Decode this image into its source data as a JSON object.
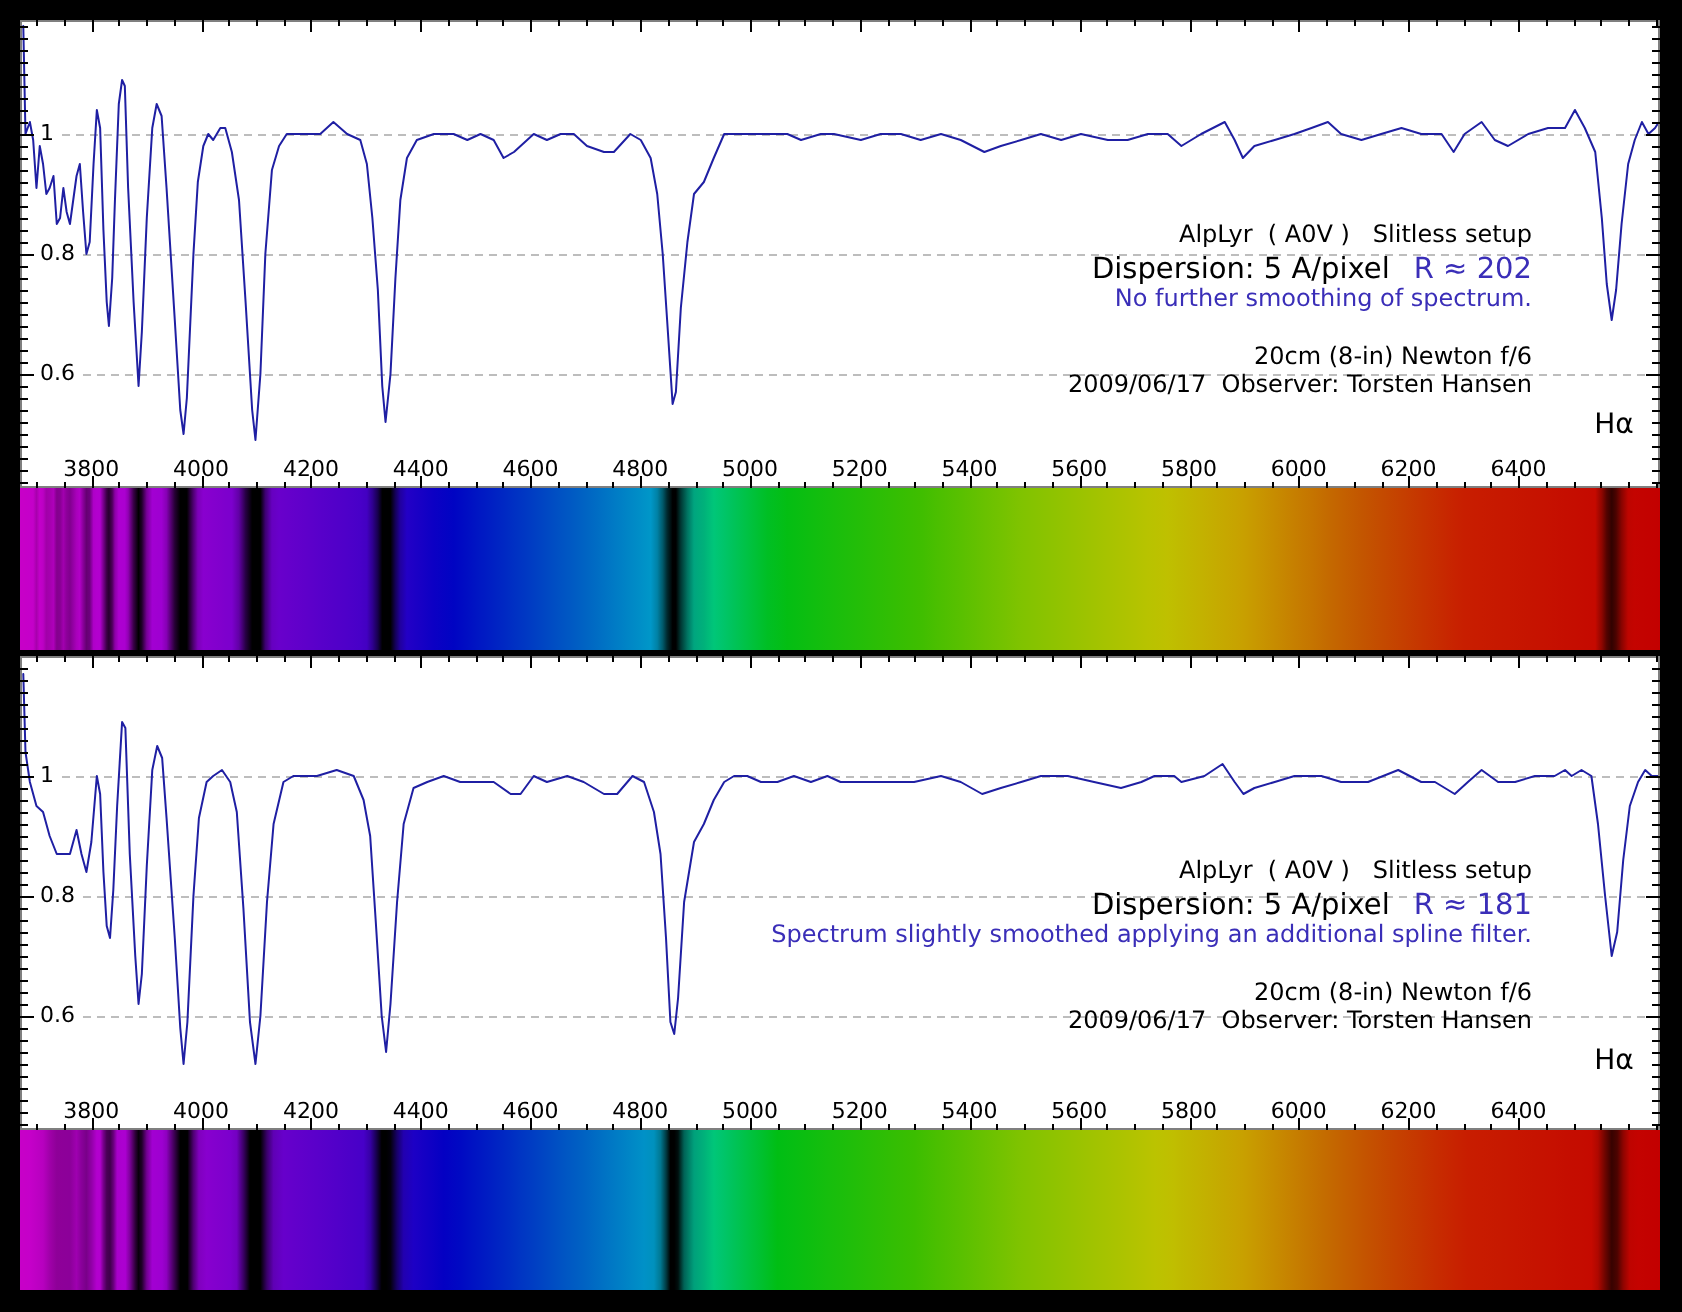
{
  "chart_data": [
    {
      "type": "line",
      "x": [
        3676,
        3680,
        3688,
        3694,
        3700,
        3706,
        3712,
        3718,
        3724,
        3731,
        3737,
        3743,
        3749,
        3755,
        3761,
        3767,
        3773,
        3779,
        3785,
        3791,
        3797,
        3804,
        3810,
        3816,
        3822,
        3828,
        3832,
        3838,
        3843,
        3850,
        3856,
        3861,
        3867,
        3877,
        3886,
        3892,
        3901,
        3911,
        3919,
        3928,
        3937,
        3952,
        3962,
        3968,
        3974,
        3986,
        3994,
        4004,
        4013,
        4022,
        4035,
        4044,
        4056,
        4069,
        4081,
        4093,
        4099,
        4108,
        4117,
        4129,
        4142,
        4156,
        4193,
        4217,
        4241,
        4266,
        4290,
        4302,
        4312,
        4322,
        4330,
        4336,
        4345,
        4354,
        4363,
        4375,
        4393,
        4424,
        4460,
        4485,
        4509,
        4533,
        4551,
        4570,
        4594,
        4606,
        4630,
        4655,
        4679,
        4703,
        4734,
        4752,
        4782,
        4801,
        4819,
        4831,
        4841,
        4849,
        4859,
        4865,
        4874,
        4886,
        4898,
        4916,
        4934,
        4953,
        4971,
        4995,
        5032,
        5068,
        5093,
        5129,
        5153,
        5202,
        5238,
        5275,
        5311,
        5348,
        5384,
        5427,
        5457,
        5494,
        5530,
        5567,
        5603,
        5652,
        5688,
        5725,
        5761,
        5786,
        5822,
        5865,
        5883,
        5898,
        5919,
        5956,
        5992,
        6023,
        6053,
        6077,
        6114,
        6150,
        6187,
        6223,
        6260,
        6282,
        6302,
        6333,
        6357,
        6381,
        6418,
        6454,
        6485,
        6503,
        6521,
        6540,
        6552,
        6561,
        6570,
        6578,
        6588,
        6600,
        6612,
        6625,
        6637,
        6649,
        6656
      ],
      "values": [
        1.18,
        1.0,
        1.02,
        0.99,
        0.91,
        0.98,
        0.95,
        0.9,
        0.91,
        0.93,
        0.85,
        0.86,
        0.91,
        0.87,
        0.85,
        0.89,
        0.93,
        0.95,
        0.87,
        0.8,
        0.82,
        0.95,
        1.04,
        1.01,
        0.84,
        0.72,
        0.68,
        0.76,
        0.89,
        1.05,
        1.09,
        1.08,
        0.91,
        0.72,
        0.58,
        0.67,
        0.86,
        1.01,
        1.05,
        1.03,
        0.91,
        0.69,
        0.54,
        0.5,
        0.56,
        0.8,
        0.92,
        0.98,
        1.0,
        0.99,
        1.01,
        1.01,
        0.97,
        0.89,
        0.72,
        0.54,
        0.49,
        0.6,
        0.8,
        0.94,
        0.98,
        1.0,
        1.0,
        1.0,
        1.02,
        1.0,
        0.99,
        0.95,
        0.86,
        0.74,
        0.58,
        0.52,
        0.6,
        0.76,
        0.89,
        0.96,
        0.99,
        1.0,
        1.0,
        0.99,
        1.0,
        0.99,
        0.96,
        0.97,
        0.99,
        1.0,
        0.99,
        1.0,
        1.0,
        0.98,
        0.97,
        0.97,
        1.0,
        0.99,
        0.96,
        0.9,
        0.8,
        0.69,
        0.55,
        0.57,
        0.71,
        0.82,
        0.9,
        0.92,
        0.96,
        1.0,
        1.0,
        1.0,
        1.0,
        1.0,
        0.99,
        1.0,
        1.0,
        0.99,
        1.0,
        1.0,
        0.99,
        1.0,
        0.99,
        0.97,
        0.98,
        0.99,
        1.0,
        0.99,
        1.0,
        0.99,
        0.99,
        1.0,
        1.0,
        0.98,
        1.0,
        1.02,
        0.99,
        0.96,
        0.98,
        0.99,
        1.0,
        1.01,
        1.02,
        1.0,
        0.99,
        1.0,
        1.01,
        1.0,
        1.0,
        0.97,
        1.0,
        1.02,
        0.99,
        0.98,
        1.0,
        1.01,
        1.01,
        1.04,
        1.01,
        0.97,
        0.86,
        0.75,
        0.69,
        0.74,
        0.85,
        0.95,
        0.99,
        1.02,
        1.0,
        1.01,
        1.02
      ],
      "color": "#1f1fa3",
      "line_style": "solid",
      "marker": "none",
      "xlim": [
        3670,
        6658
      ],
      "ylim": [
        0.41,
        1.19
      ],
      "xticks": [
        {
          "value": 3700,
          "label": null
        },
        {
          "value": 3750,
          "label": null
        },
        3800,
        {
          "value": 3850,
          "label": null
        },
        {
          "value": 3900,
          "label": null
        },
        {
          "value": 3950,
          "label": null
        },
        4000,
        {
          "value": 4050,
          "label": null
        },
        {
          "value": 4100,
          "label": null
        },
        {
          "value": 4150,
          "label": null
        },
        4200,
        {
          "value": 4250,
          "label": null
        },
        {
          "value": 4300,
          "label": null
        },
        {
          "value": 4350,
          "label": null
        },
        4400,
        {
          "value": 4450,
          "label": null
        },
        {
          "value": 4500,
          "label": null
        },
        {
          "value": 4550,
          "label": null
        },
        4600,
        {
          "value": 4650,
          "label": null
        },
        {
          "value": 4700,
          "label": null
        },
        {
          "value": 4750,
          "label": null
        },
        4800,
        {
          "value": 4850,
          "label": null
        },
        {
          "value": 4900,
          "label": null
        },
        {
          "value": 4950,
          "label": null
        },
        5000,
        {
          "value": 5050,
          "label": null
        },
        {
          "value": 5100,
          "label": null
        },
        {
          "value": 5150,
          "label": null
        },
        5200,
        {
          "value": 5250,
          "label": null
        },
        {
          "value": 5300,
          "label": null
        },
        {
          "value": 5350,
          "label": null
        },
        5400,
        {
          "value": 5450,
          "label": null
        },
        {
          "value": 5500,
          "label": null
        },
        {
          "value": 5550,
          "label": null
        },
        5600,
        {
          "value": 5650,
          "label": null
        },
        {
          "value": 5700,
          "label": null
        },
        {
          "value": 5750,
          "label": null
        },
        5800,
        {
          "value": 5850,
          "label": null
        },
        {
          "value": 5900,
          "label": null
        },
        {
          "value": 5950,
          "label": null
        },
        6000,
        {
          "value": 6050,
          "label": null
        },
        {
          "value": 6100,
          "label": null
        },
        {
          "value": 6150,
          "label": null
        },
        6200,
        {
          "value": 6250,
          "label": null
        },
        {
          "value": 6300,
          "label": null
        },
        {
          "value": 6350,
          "label": null
        },
        6400,
        {
          "value": 6450,
          "label": null
        },
        {
          "value": 6500,
          "label": null
        },
        {
          "value": 6550,
          "label": null
        },
        {
          "value": 6600,
          "label": null
        },
        {
          "value": 6650,
          "label": null
        }
      ],
      "yticks": [
        {
          "value": 0.42,
          "label": null
        },
        {
          "value": 0.44,
          "label": null
        },
        {
          "value": 0.46,
          "label": null
        },
        {
          "value": 0.48,
          "label": null
        },
        {
          "value": 0.5,
          "label": null
        },
        {
          "value": 0.52,
          "label": null
        },
        {
          "value": 0.54,
          "label": null
        },
        {
          "value": 0.56,
          "label": null
        },
        {
          "value": 0.58,
          "label": null
        },
        0.6,
        {
          "value": 0.62,
          "label": null
        },
        {
          "value": 0.64,
          "label": null
        },
        {
          "value": 0.66,
          "label": null
        },
        {
          "value": 0.68,
          "label": null
        },
        {
          "value": 0.7,
          "label": null
        },
        {
          "value": 0.72,
          "label": null
        },
        {
          "value": 0.74,
          "label": null
        },
        {
          "value": 0.76,
          "label": null
        },
        {
          "value": 0.78,
          "label": null
        },
        0.8,
        {
          "value": 0.82,
          "label": null
        },
        {
          "value": 0.84,
          "label": null
        },
        {
          "value": 0.86,
          "label": null
        },
        {
          "value": 0.88,
          "label": null
        },
        {
          "value": 0.9,
          "label": null
        },
        {
          "value": 0.92,
          "label": null
        },
        {
          "value": 0.94,
          "label": null
        },
        {
          "value": 0.96,
          "label": null
        },
        {
          "value": 0.98,
          "label": null
        },
        1,
        {
          "value": 1.02,
          "label": null
        },
        {
          "value": 1.04,
          "label": null
        },
        {
          "value": 1.06,
          "label": null
        },
        {
          "value": 1.08,
          "label": null
        },
        {
          "value": 1.1,
          "label": null
        },
        {
          "value": 1.12,
          "label": null
        },
        {
          "value": 1.14,
          "label": null
        },
        {
          "value": 1.16,
          "label": null
        },
        {
          "value": 1.18,
          "label": null
        }
      ],
      "grid": "y",
      "annotations": [
        "AlpLyr  ( A0V )   Slitless setup",
        "Dispersion: 5 A/pixel",
        "R ≈ 202",
        "No further smoothing of spectrum.",
        "20cm (8-in) Newton f/6",
        "2009/06/17  Observer: Torsten Hansen",
        "Hα"
      ]
    },
    {
      "type": "line",
      "x": [
        3676,
        3680,
        3688,
        3700,
        3712,
        3724,
        3737,
        3749,
        3761,
        3773,
        3782,
        3791,
        3800,
        3810,
        3816,
        3822,
        3828,
        3834,
        3840,
        3847,
        3856,
        3862,
        3870,
        3880,
        3886,
        3892,
        3901,
        3911,
        3920,
        3929,
        3937,
        3952,
        3962,
        3968,
        3975,
        3986,
        3996,
        4010,
        4022,
        4038,
        4053,
        4065,
        4077,
        4089,
        4099,
        4108,
        4120,
        4132,
        4150,
        4168,
        4211,
        4247,
        4278,
        4296,
        4308,
        4318,
        4329,
        4337,
        4345,
        4357,
        4369,
        4387,
        4412,
        4442,
        4472,
        4497,
        4533,
        4564,
        4582,
        4606,
        4630,
        4667,
        4697,
        4734,
        4758,
        4786,
        4807,
        4825,
        4837,
        4847,
        4855,
        4862,
        4869,
        4880,
        4898,
        4916,
        4934,
        4953,
        4971,
        4995,
        5020,
        5050,
        5080,
        5111,
        5141,
        5165,
        5190,
        5226,
        5263,
        5299,
        5348,
        5384,
        5423,
        5457,
        5494,
        5530,
        5579,
        5627,
        5676,
        5713,
        5737,
        5773,
        5786,
        5828,
        5861,
        5883,
        5899,
        5919,
        5956,
        5992,
        6041,
        6077,
        6126,
        6181,
        6223,
        6248,
        6284,
        6308,
        6333,
        6363,
        6394,
        6430,
        6466,
        6485,
        6497,
        6515,
        6533,
        6545,
        6558,
        6570,
        6580,
        6591,
        6603,
        6618,
        6631,
        6643,
        6655
      ],
      "values": [
        1.17,
        1.04,
        0.99,
        0.95,
        0.94,
        0.9,
        0.87,
        0.87,
        0.87,
        0.91,
        0.87,
        0.84,
        0.89,
        1.0,
        0.97,
        0.84,
        0.75,
        0.73,
        0.81,
        0.95,
        1.09,
        1.08,
        0.87,
        0.7,
        0.62,
        0.67,
        0.85,
        1.01,
        1.05,
        1.03,
        0.93,
        0.73,
        0.58,
        0.52,
        0.59,
        0.8,
        0.93,
        0.99,
        1.0,
        1.01,
        0.99,
        0.94,
        0.78,
        0.59,
        0.52,
        0.6,
        0.79,
        0.92,
        0.99,
        1.0,
        1.0,
        1.01,
        1.0,
        0.96,
        0.9,
        0.76,
        0.6,
        0.54,
        0.62,
        0.79,
        0.92,
        0.98,
        0.99,
        1.0,
        0.99,
        0.99,
        0.99,
        0.97,
        0.97,
        1.0,
        0.99,
        1.0,
        0.99,
        0.97,
        0.97,
        1.0,
        0.99,
        0.94,
        0.87,
        0.73,
        0.59,
        0.57,
        0.63,
        0.79,
        0.89,
        0.92,
        0.96,
        0.99,
        1.0,
        1.0,
        0.99,
        0.99,
        1.0,
        0.99,
        1.0,
        0.99,
        0.99,
        0.99,
        0.99,
        0.99,
        1.0,
        0.99,
        0.97,
        0.98,
        0.99,
        1.0,
        1.0,
        0.99,
        0.98,
        0.99,
        1.0,
        1.0,
        0.99,
        1.0,
        1.02,
        0.99,
        0.97,
        0.98,
        0.99,
        1.0,
        1.0,
        0.99,
        0.99,
        1.01,
        0.99,
        0.99,
        0.97,
        0.99,
        1.01,
        0.99,
        0.99,
        1.0,
        1.0,
        1.01,
        1.0,
        1.01,
        1.0,
        0.92,
        0.8,
        0.7,
        0.74,
        0.86,
        0.95,
        0.99,
        1.01,
        1.0,
        1.0
      ],
      "color": "#1f1fa3",
      "line_style": "solid",
      "marker": "none",
      "xlim": [
        3670,
        6658
      ],
      "ylim": [
        0.41,
        1.2
      ],
      "xticks": [
        {
          "value": 3700,
          "label": null
        },
        {
          "value": 3750,
          "label": null
        },
        3800,
        {
          "value": 3850,
          "label": null
        },
        {
          "value": 3900,
          "label": null
        },
        {
          "value": 3950,
          "label": null
        },
        4000,
        {
          "value": 4050,
          "label": null
        },
        {
          "value": 4100,
          "label": null
        },
        {
          "value": 4150,
          "label": null
        },
        4200,
        {
          "value": 4250,
          "label": null
        },
        {
          "value": 4300,
          "label": null
        },
        {
          "value": 4350,
          "label": null
        },
        4400,
        {
          "value": 4450,
          "label": null
        },
        {
          "value": 4500,
          "label": null
        },
        {
          "value": 4550,
          "label": null
        },
        4600,
        {
          "value": 4650,
          "label": null
        },
        {
          "value": 4700,
          "label": null
        },
        {
          "value": 4750,
          "label": null
        },
        4800,
        {
          "value": 4850,
          "label": null
        },
        {
          "value": 4900,
          "label": null
        },
        {
          "value": 4950,
          "label": null
        },
        5000,
        {
          "value": 5050,
          "label": null
        },
        {
          "value": 5100,
          "label": null
        },
        {
          "value": 5150,
          "label": null
        },
        5200,
        {
          "value": 5250,
          "label": null
        },
        {
          "value": 5300,
          "label": null
        },
        {
          "value": 5350,
          "label": null
        },
        5400,
        {
          "value": 5450,
          "label": null
        },
        {
          "value": 5500,
          "label": null
        },
        {
          "value": 5550,
          "label": null
        },
        5600,
        {
          "value": 5650,
          "label": null
        },
        {
          "value": 5700,
          "label": null
        },
        {
          "value": 5750,
          "label": null
        },
        5800,
        {
          "value": 5850,
          "label": null
        },
        {
          "value": 5900,
          "label": null
        },
        {
          "value": 5950,
          "label": null
        },
        6000,
        {
          "value": 6050,
          "label": null
        },
        {
          "value": 6100,
          "label": null
        },
        {
          "value": 6150,
          "label": null
        },
        6200,
        {
          "value": 6250,
          "label": null
        },
        {
          "value": 6300,
          "label": null
        },
        {
          "value": 6350,
          "label": null
        },
        6400,
        {
          "value": 6450,
          "label": null
        },
        {
          "value": 6500,
          "label": null
        },
        {
          "value": 6550,
          "label": null
        },
        {
          "value": 6600,
          "label": null
        },
        {
          "value": 6650,
          "label": null
        }
      ],
      "yticks": [
        {
          "value": 0.42,
          "label": null
        },
        {
          "value": 0.44,
          "label": null
        },
        {
          "value": 0.46,
          "label": null
        },
        {
          "value": 0.48,
          "label": null
        },
        {
          "value": 0.5,
          "label": null
        },
        {
          "value": 0.52,
          "label": null
        },
        {
          "value": 0.54,
          "label": null
        },
        {
          "value": 0.56,
          "label": null
        },
        {
          "value": 0.58,
          "label": null
        },
        0.6,
        {
          "value": 0.62,
          "label": null
        },
        {
          "value": 0.64,
          "label": null
        },
        {
          "value": 0.66,
          "label": null
        },
        {
          "value": 0.68,
          "label": null
        },
        {
          "value": 0.7,
          "label": null
        },
        {
          "value": 0.72,
          "label": null
        },
        {
          "value": 0.74,
          "label": null
        },
        {
          "value": 0.76,
          "label": null
        },
        {
          "value": 0.78,
          "label": null
        },
        0.8,
        {
          "value": 0.82,
          "label": null
        },
        {
          "value": 0.84,
          "label": null
        },
        {
          "value": 0.86,
          "label": null
        },
        {
          "value": 0.88,
          "label": null
        },
        {
          "value": 0.9,
          "label": null
        },
        {
          "value": 0.92,
          "label": null
        },
        {
          "value": 0.94,
          "label": null
        },
        {
          "value": 0.96,
          "label": null
        },
        {
          "value": 0.98,
          "label": null
        },
        1,
        {
          "value": 1.02,
          "label": null
        },
        {
          "value": 1.04,
          "label": null
        },
        {
          "value": 1.06,
          "label": null
        },
        {
          "value": 1.08,
          "label": null
        },
        {
          "value": 1.1,
          "label": null
        },
        {
          "value": 1.12,
          "label": null
        },
        {
          "value": 1.14,
          "label": null
        },
        {
          "value": 1.16,
          "label": null
        },
        {
          "value": 1.18,
          "label": null
        }
      ],
      "grid": "y",
      "annotations": [
        "AlpLyr  ( A0V )   Slitless setup",
        "Dispersion: 5 A/pixel",
        "R ≈ 181",
        "Spectrum slightly smoothed applying an additional spline filter.",
        "20cm (8-in) Newton f/6",
        "2009/06/17  Observer: Torsten Hansen",
        "Hα"
      ]
    }
  ]
}
